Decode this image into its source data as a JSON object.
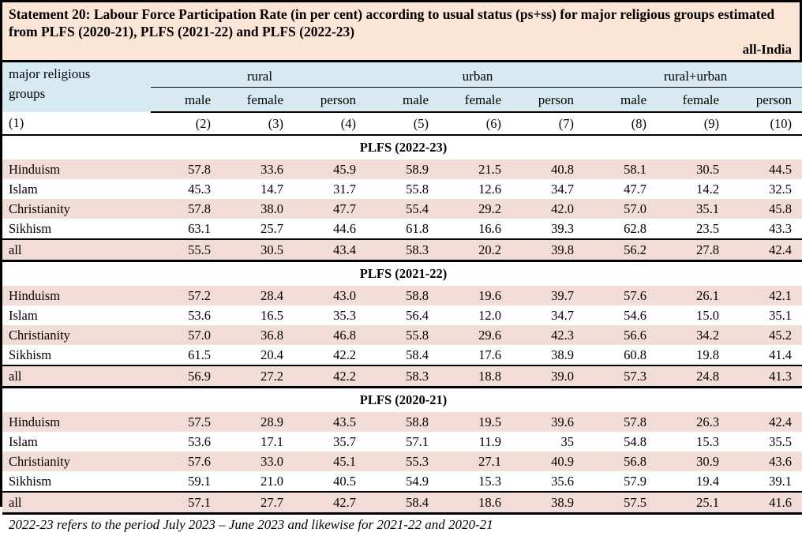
{
  "header": {
    "title": "Statement 20: Labour Force Participation Rate (in per cent) according to usual status (ps+ss) for major religious groups estimated from PLFS (2020-21),  PLFS (2021-22) and PLFS (2022-23)",
    "region_label": "all-India"
  },
  "colors": {
    "title_bg": "#fbe5d6",
    "header_bg": "#d7eaf2",
    "row_pink": "#f2dcd8",
    "border": "#000000"
  },
  "table": {
    "col1_header_line1": "major religious",
    "col1_header_line2": "groups",
    "groups": [
      "rural",
      "urban",
      "rural+urban"
    ],
    "sub_headers": [
      "male",
      "female",
      "person",
      "male",
      "female",
      "person",
      "male",
      "female",
      "person"
    ],
    "col_numbers": [
      "(1)",
      "(2)",
      "(3)",
      "(4)",
      "(5)",
      "(6)",
      "(7)",
      "(8)",
      "(9)",
      "(10)"
    ],
    "sections": [
      {
        "label": "PLFS (2022-23)",
        "rows": [
          {
            "label": "Hinduism",
            "values": [
              "57.8",
              "33.6",
              "45.9",
              "58.9",
              "21.5",
              "40.8",
              "58.1",
              "30.5",
              "44.5"
            ]
          },
          {
            "label": "Islam",
            "values": [
              "45.3",
              "14.7",
              "31.7",
              "55.8",
              "12.6",
              "34.7",
              "47.7",
              "14.2",
              "32.5"
            ]
          },
          {
            "label": "Christianity",
            "values": [
              "57.8",
              "38.0",
              "47.7",
              "55.4",
              "29.2",
              "42.0",
              "57.0",
              "35.1",
              "45.8"
            ]
          },
          {
            "label": "Sikhism",
            "values": [
              "63.1",
              "25.7",
              "44.6",
              "61.8",
              "16.6",
              "39.3",
              "62.8",
              "23.5",
              "43.3"
            ]
          },
          {
            "label": "all",
            "values": [
              "55.5",
              "30.5",
              "43.4",
              "58.3",
              "20.2",
              "39.8",
              "56.2",
              "27.8",
              "42.4"
            ]
          }
        ]
      },
      {
        "label": "PLFS (2021-22)",
        "rows": [
          {
            "label": "Hinduism",
            "values": [
              "57.2",
              "28.4",
              "43.0",
              "58.8",
              "19.6",
              "39.7",
              "57.6",
              "26.1",
              "42.1"
            ]
          },
          {
            "label": "Islam",
            "values": [
              "53.6",
              "16.5",
              "35.3",
              "56.4",
              "12.0",
              "34.7",
              "54.6",
              "15.0",
              "35.1"
            ]
          },
          {
            "label": "Christianity",
            "values": [
              "57.0",
              "36.8",
              "46.8",
              "55.8",
              "29.6",
              "42.3",
              "56.6",
              "34.2",
              "45.2"
            ]
          },
          {
            "label": "Sikhism",
            "values": [
              "61.5",
              "20.4",
              "42.2",
              "58.4",
              "17.6",
              "38.9",
              "60.8",
              "19.8",
              "41.4"
            ]
          },
          {
            "label": "all",
            "values": [
              "56.9",
              "27.2",
              "42.2",
              "58.3",
              "18.8",
              "39.0",
              "57.3",
              "24.8",
              "41.3"
            ]
          }
        ]
      },
      {
        "label": "PLFS (2020-21)",
        "rows": [
          {
            "label": "Hinduism",
            "values": [
              "57.5",
              "28.9",
              "43.5",
              "58.8",
              "19.5",
              "39.6",
              "57.8",
              "26.3",
              "42.4"
            ]
          },
          {
            "label": "Islam",
            "values": [
              "53.6",
              "17.1",
              "35.7",
              "57.1",
              "11.9",
              "35",
              "54.8",
              "15.3",
              "35.5"
            ]
          },
          {
            "label": "Christianity",
            "values": [
              "57.6",
              "33.0",
              "45.1",
              "55.3",
              "27.1",
              "40.9",
              "56.8",
              "30.9",
              "43.6"
            ]
          },
          {
            "label": "Sikhism",
            "values": [
              "59.1",
              "21.0",
              "40.5",
              "54.9",
              "15.3",
              "35.6",
              "57.9",
              "19.4",
              "39.1"
            ]
          },
          {
            "label": "all",
            "values": [
              "57.1",
              "27.7",
              "42.7",
              "58.4",
              "18.6",
              "38.9",
              "57.5",
              "25.1",
              "41.6"
            ]
          }
        ]
      }
    ]
  },
  "footnote": "2022-23 refers to the period July 2023 – June 2023 and likewise for 2021-22 and 2020-21"
}
